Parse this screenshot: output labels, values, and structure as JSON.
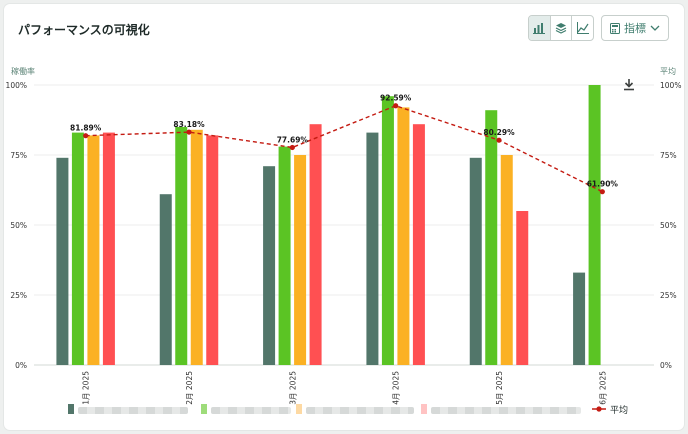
{
  "header": {
    "title": "パフォーマンスの可視化",
    "metric_label": "指標",
    "view_icons": [
      "bar-chart-icon",
      "stack-icon",
      "line-chart-icon"
    ]
  },
  "chart_data": {
    "type": "bar",
    "title": "",
    "ylabel_left": "稼働率",
    "ylabel_right": "平均",
    "ylim": [
      0,
      100
    ],
    "y_ticks": [
      "0%",
      "25%",
      "50%",
      "75%",
      "100%"
    ],
    "categories": [
      "1月 2025",
      "2月 2025",
      "3月 2025",
      "4月 2025",
      "5月 2025",
      "6月 2025"
    ],
    "series": [
      {
        "color": "#52766a",
        "values": [
          74,
          61,
          71,
          83,
          74,
          33
        ]
      },
      {
        "color": "#5bc424",
        "values": [
          83,
          85,
          78,
          96,
          91,
          100
        ]
      },
      {
        "color": "#fbb124",
        "values": [
          82,
          84,
          75,
          92,
          75,
          null
        ]
      },
      {
        "color": "#ff5052",
        "values": [
          83,
          82,
          86,
          86,
          55,
          null
        ]
      }
    ],
    "average": {
      "name": "平均",
      "color": "#c41b12",
      "values": [
        81.89,
        83.18,
        77.69,
        92.59,
        80.29,
        61.9
      ],
      "labels": [
        "81.89%",
        "83.18%",
        "77.69%",
        "92.59%",
        "80.29%",
        "61.90%"
      ]
    },
    "grid": true,
    "legend_position": "bottom"
  }
}
